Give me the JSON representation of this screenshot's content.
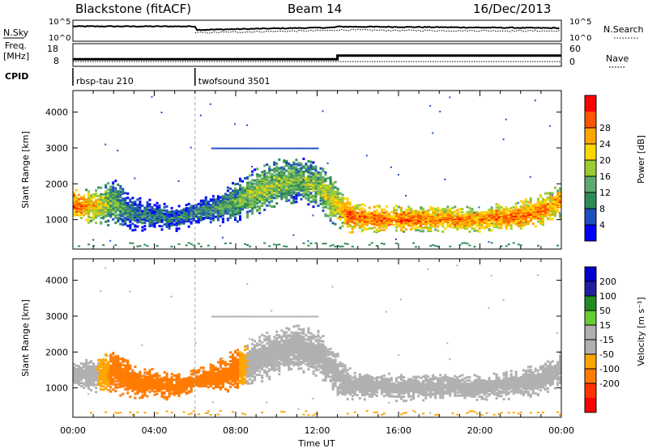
{
  "header": {
    "station": "Blackstone (fitACF)",
    "beam": "Beam 14",
    "date": "16/Dec/2013"
  },
  "labels": {
    "nsky": "N.Sky",
    "nsearch": "N.Search",
    "freq_line1": "Freq.",
    "freq_line2": "[MHz]",
    "nave": "Nave",
    "cpid": "CPID",
    "slant_range": "Slant Range [km]",
    "time_axis": "Time UT",
    "power_bar": "Power [dB]",
    "velocity_bar": "Velocity [m s⁻¹]"
  },
  "cpid_modes": [
    {
      "name": "rbsp-tau 210",
      "start_hour": 0
    },
    {
      "name": "twofsound 3501",
      "start_hour": 6
    }
  ],
  "colors": {
    "power_scale": [
      "#0000ff",
      "#1f4fbf",
      "#2e8b57",
      "#5faa6f",
      "#9acd32",
      "#ffd700",
      "#ffa500",
      "#ff5500",
      "#ff0000"
    ],
    "velocity_scale": [
      "#0000cd",
      "#2020a0",
      "#228b22",
      "#66cc33",
      "#b0b0b0",
      "#b0b0b0",
      "#ffa500",
      "#ff7a00",
      "#ff3300",
      "#ff0000"
    ]
  },
  "chart_data": [
    {
      "type": "line",
      "panel": "noise",
      "x_range": [
        0,
        24
      ],
      "y_left_ticks": [
        "10^5",
        "10^0"
      ],
      "y_right_ticks": [
        "10^5",
        "10^0"
      ],
      "series": [
        {
          "name": "N.Sky",
          "x": [
            0,
            6,
            6.1,
            10,
            12.8,
            13,
            16,
            20,
            24
          ],
          "y": [
            4.0,
            4.0,
            2.8,
            3.3,
            3.6,
            3.9,
            3.8,
            3.6,
            3.4
          ]
        },
        {
          "name": "N.Search",
          "x": [
            6,
            10,
            12.8,
            13,
            16,
            20,
            24
          ],
          "y": [
            1.8,
            2.3,
            2.6,
            2.8,
            2.6,
            2.5,
            2.4
          ]
        }
      ]
    },
    {
      "type": "line",
      "panel": "frequency",
      "x_range": [
        0,
        24
      ],
      "y_left_ticks": [
        "18",
        "8"
      ],
      "y_right_ticks": [
        "60",
        "0"
      ],
      "series": [
        {
          "name": "Freq.",
          "x": [
            0,
            13,
            13,
            24
          ],
          "y": [
            10.5,
            10.5,
            13.5,
            13.5
          ]
        },
        {
          "name": "Nave",
          "x": [
            0,
            24
          ],
          "y": [
            2,
            2
          ]
        }
      ]
    },
    {
      "type": "heatmap",
      "panel": "power",
      "xlabel": "",
      "ylabel": "Slant Range [km]",
      "x_range": [
        0,
        24
      ],
      "ylim": [
        180,
        4600
      ],
      "y_ticks": [
        1000,
        2000,
        3000,
        4000
      ],
      "colorbar": {
        "label": "Power [dB]",
        "ticks": [
          4,
          8,
          12,
          16,
          20,
          24,
          28
        ],
        "range": [
          0,
          32
        ]
      },
      "features": [
        {
          "x": [
            0,
            1,
            2,
            3,
            4,
            5,
            6,
            7,
            8,
            9,
            10,
            11,
            12,
            12.8,
            13.5,
            14,
            16,
            18,
            20,
            22,
            23,
            24
          ],
          "y": [
            1450,
            1400,
            1500,
            1200,
            1150,
            1050,
            1250,
            1350,
            1550,
            1800,
            2050,
            2150,
            2000,
            1500,
            1150,
            1100,
            1050,
            1050,
            1050,
            1150,
            1300,
            1600
          ],
          "width": [
            260,
            300,
            400,
            300,
            250,
            230,
            200,
            260,
            380,
            420,
            420,
            400,
            400,
            380,
            300,
            240,
            240,
            220,
            220,
            260,
            280,
            300
          ],
          "power": [
            27,
            22,
            14,
            10,
            9,
            8,
            10,
            11,
            14,
            17,
            16,
            14,
            16,
            20,
            27,
            26,
            26,
            25,
            25,
            26,
            25,
            24
          ]
        }
      ]
    },
    {
      "type": "heatmap",
      "panel": "velocity",
      "xlabel": "Time UT",
      "ylabel": "Slant Range [km]",
      "x_range": [
        0,
        24
      ],
      "x_ticks": [
        "00:00",
        "04:00",
        "08:00",
        "12:00",
        "16:00",
        "20:00",
        "00:00"
      ],
      "ylim": [
        180,
        4600
      ],
      "y_ticks": [
        1000,
        2000,
        3000,
        4000
      ],
      "colorbar": {
        "label": "Velocity [m s⁻¹]",
        "ticks": [
          200,
          100,
          50,
          15,
          -15,
          -50,
          -100,
          -200
        ]
      },
      "features": [
        {
          "x": [
            0,
            1,
            2,
            3,
            4,
            5,
            6,
            7,
            8,
            9,
            10,
            11,
            12,
            12.8,
            13.5,
            14,
            16,
            18,
            20,
            22,
            23,
            24
          ],
          "y": [
            1450,
            1400,
            1500,
            1200,
            1150,
            1050,
            1250,
            1350,
            1550,
            1800,
            2050,
            2150,
            2000,
            1500,
            1150,
            1100,
            1050,
            1050,
            1050,
            1150,
            1300,
            1600
          ],
          "width": [
            260,
            300,
            400,
            300,
            250,
            230,
            200,
            260,
            380,
            420,
            420,
            400,
            400,
            380,
            300,
            240,
            240,
            220,
            220,
            260,
            280,
            300
          ],
          "velocity": [
            0,
            -5,
            -70,
            -60,
            -60,
            -60,
            -80,
            -70,
            -60,
            30,
            40,
            35,
            30,
            0,
            0,
            0,
            0,
            0,
            0,
            0,
            0,
            0
          ]
        }
      ]
    }
  ]
}
